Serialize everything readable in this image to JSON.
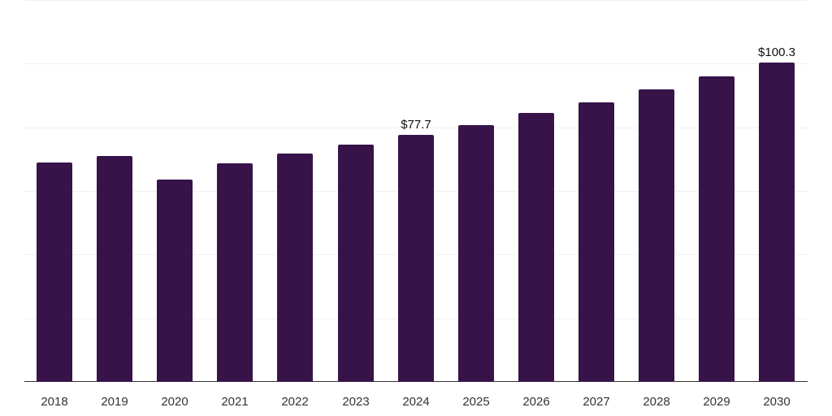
{
  "chart_data": {
    "type": "bar",
    "title": "",
    "xlabel": "",
    "ylabel": "",
    "categories": [
      "2018",
      "2019",
      "2020",
      "2021",
      "2022",
      "2023",
      "2024",
      "2025",
      "2026",
      "2027",
      "2028",
      "2029",
      "2030"
    ],
    "values": [
      69.0,
      71.1,
      63.6,
      68.8,
      71.8,
      74.6,
      77.7,
      80.8,
      84.4,
      87.9,
      91.8,
      95.9,
      100.3
    ],
    "data_labels": [
      {
        "category": "2024",
        "text": "$77.7"
      },
      {
        "category": "2030",
        "text": "$100.3"
      }
    ],
    "ylim": [
      0,
      120
    ],
    "grid": true,
    "gridline_step": 20,
    "y_tick_labels_visible": false,
    "legend": null,
    "bar_color": "#371349"
  }
}
